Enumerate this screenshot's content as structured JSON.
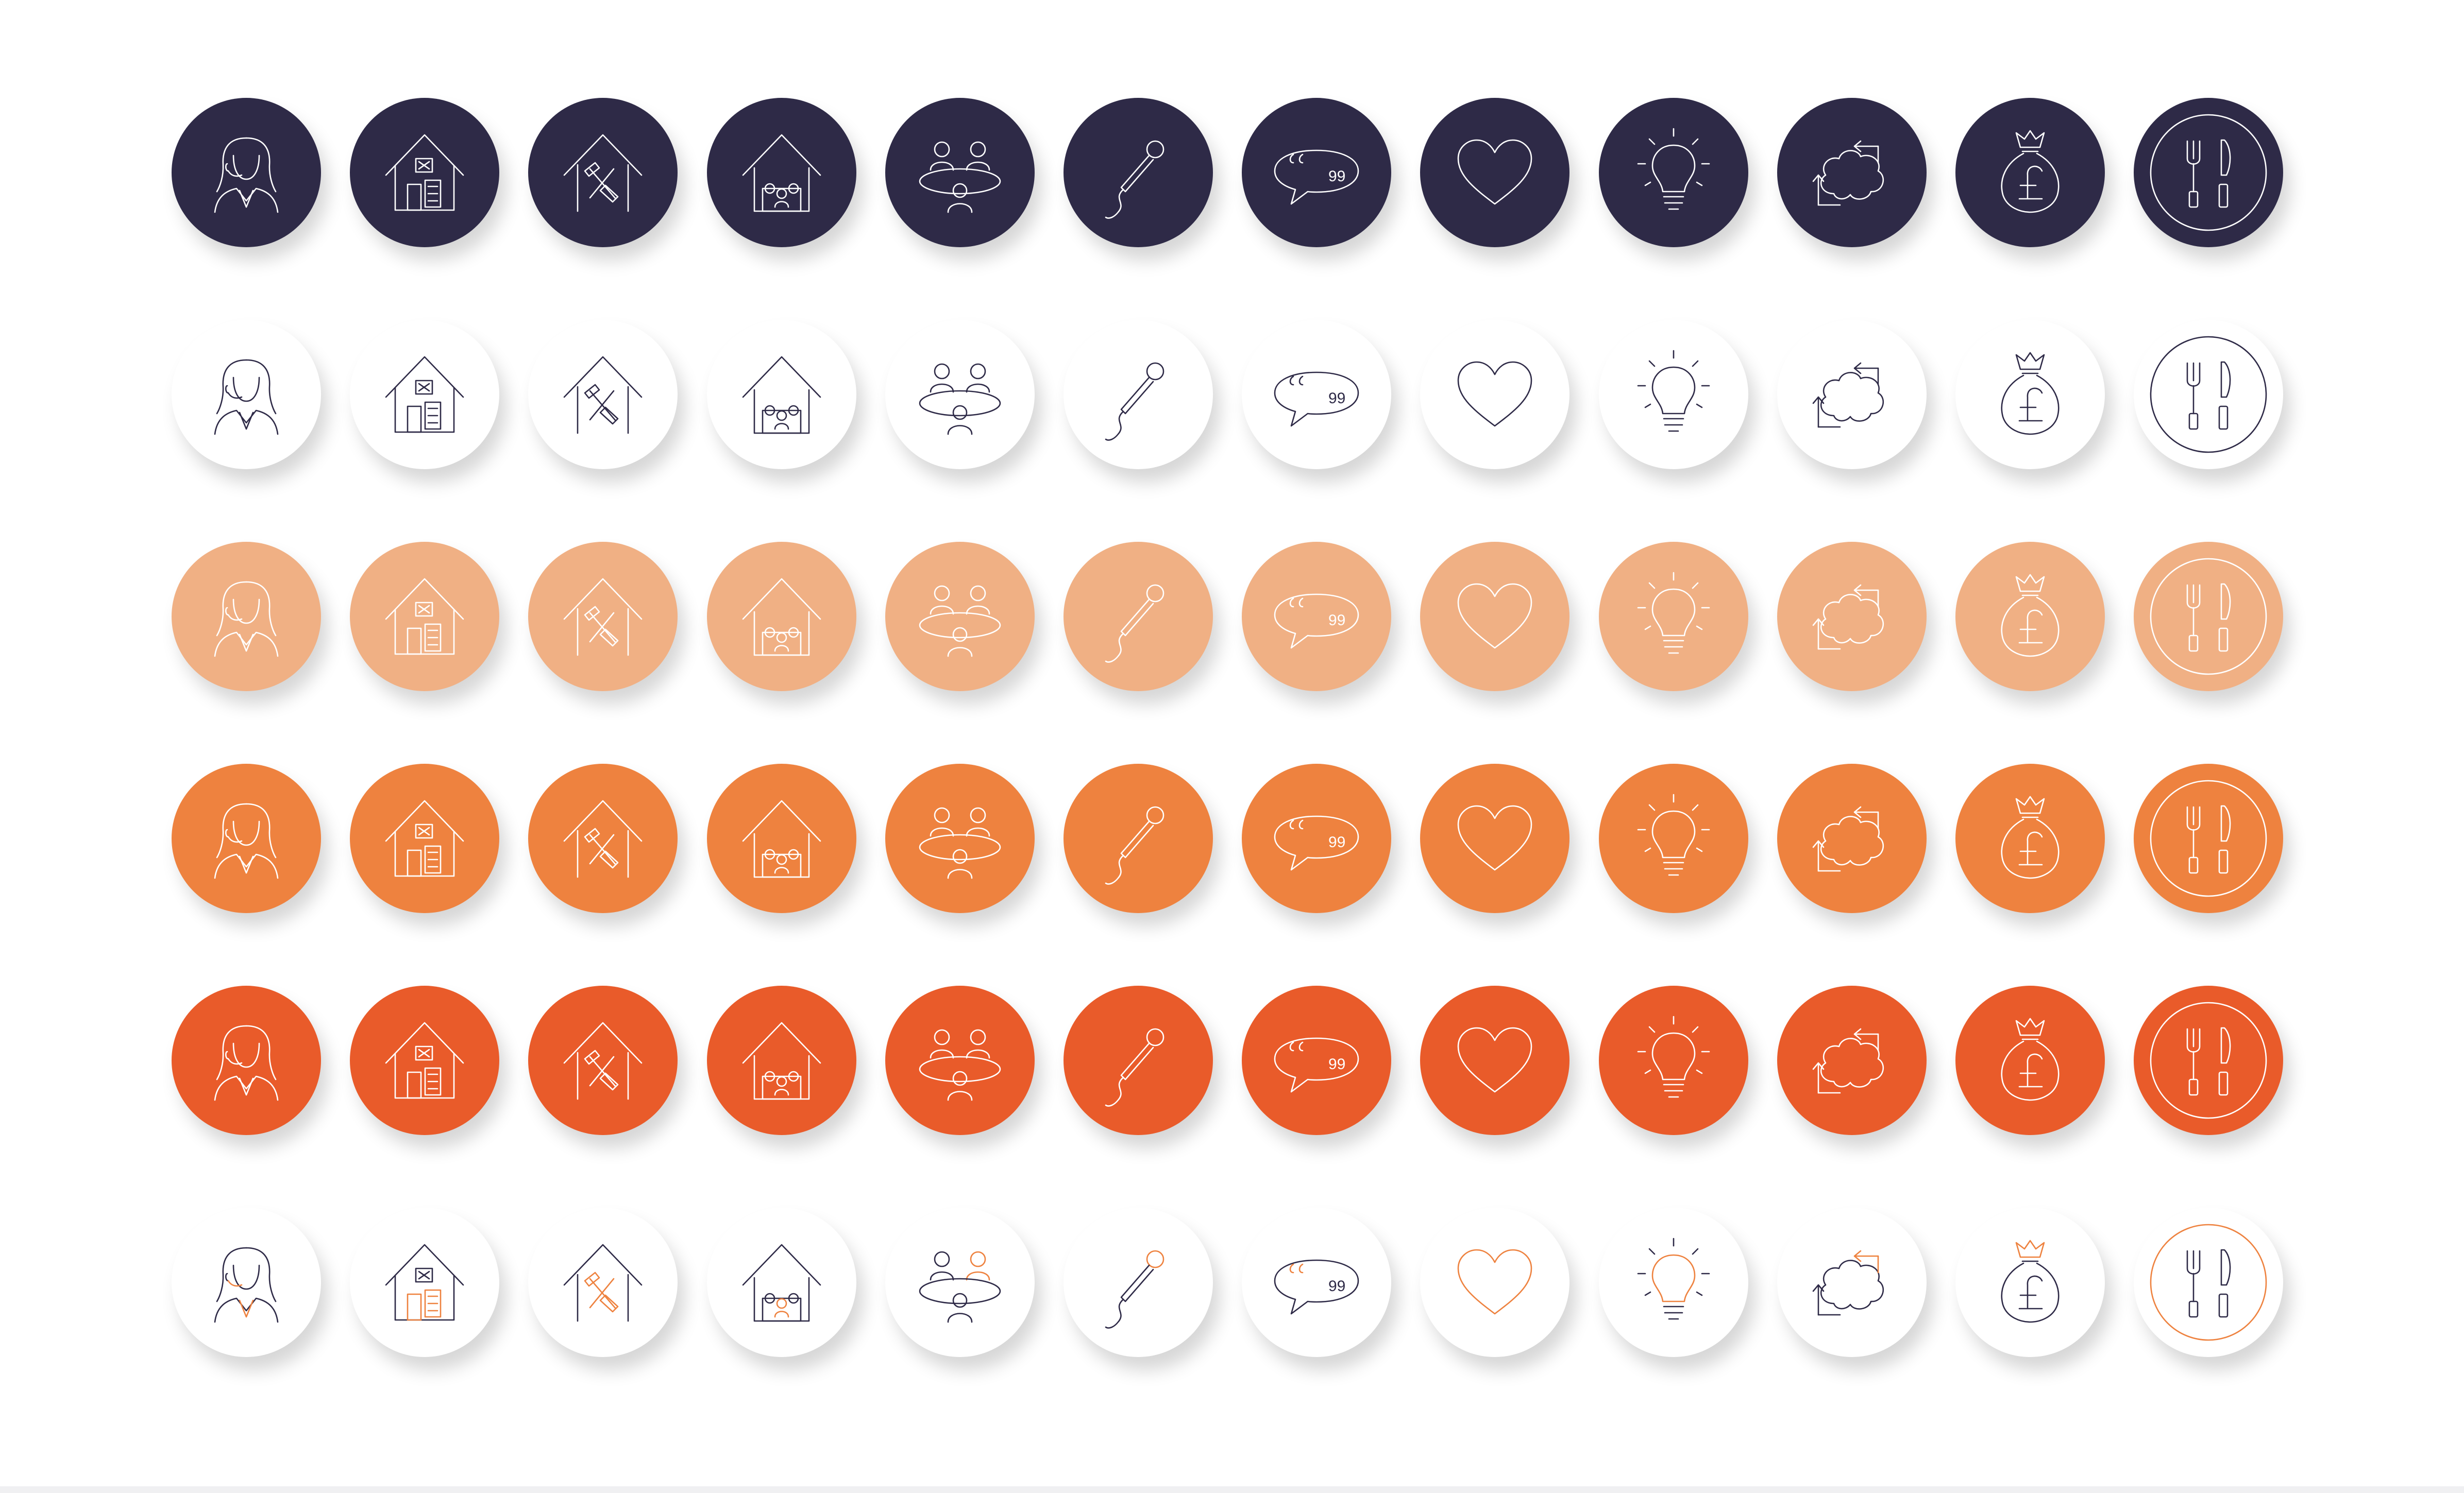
{
  "palette": {
    "navy": "#2e2a47",
    "peach": "#f0b084",
    "orange": "#ee823f",
    "red_orange": "#e95b2a",
    "white": "#ffffff",
    "accent_orange": "#ee823f"
  },
  "icons": [
    "headset-woman-icon",
    "house-document-icon",
    "house-tools-icon",
    "house-people-icon",
    "meeting-table-icon",
    "microphone-icon",
    "quote-bubble-icon",
    "heart-icon",
    "lightbulb-icon",
    "brain-arrows-icon",
    "money-bag-pound-icon",
    "fork-knife-plate-icon"
  ],
  "rows": [
    {
      "name": "navy-row",
      "fill": "#2e2a47",
      "stroke": "#ffffff",
      "accent": "#ffffff"
    },
    {
      "name": "white-row",
      "fill": "#ffffff",
      "stroke": "#2e2a47",
      "accent": "#2e2a47"
    },
    {
      "name": "peach-row",
      "fill": "#f0b084",
      "stroke": "#ffffff",
      "accent": "#ffffff"
    },
    {
      "name": "orange-row",
      "fill": "#ee823f",
      "stroke": "#ffffff",
      "accent": "#ffffff"
    },
    {
      "name": "red-orange-row",
      "fill": "#e95b2a",
      "stroke": "#ffffff",
      "accent": "#ffffff"
    },
    {
      "name": "white-accent-row",
      "fill": "#ffffff",
      "stroke": "#2e2a47",
      "accent": "#ee823f"
    }
  ]
}
